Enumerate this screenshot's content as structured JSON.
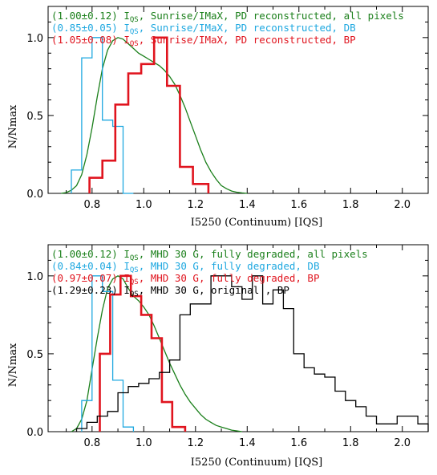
{
  "chart_data": [
    {
      "type": "histogram",
      "xlabel": "I5250 (Continuum) [IQS]",
      "ylabel": "N/Nmax",
      "xlim": [
        0.63,
        2.1
      ],
      "ylim": [
        0,
        1.2
      ],
      "x_ticks": [
        "0.8",
        "1.0",
        "1.2",
        "1.4",
        "1.6",
        "1.8",
        "2.0"
      ],
      "y_ticks": [
        "0.0",
        "0.5",
        "1.0"
      ],
      "legend_placement": "top-left",
      "legend": [
        {
          "value": "(1.00±0.12)",
          "sub": "QS",
          "rest": ", Sunrise/IMaX, PD reconstructed, all pixels",
          "color": "#1a7f1a"
        },
        {
          "value": "(0.85±0.05)",
          "sub": "QS",
          "rest": ", Sunrise/IMaX, PD reconstructed, DB",
          "color": "#1fa8e0"
        },
        {
          "value": "(1.05±0.08)",
          "sub": "QS",
          "rest": ", Sunrise/IMaX, PD reconstructed, BP",
          "color": "#e0141e"
        }
      ],
      "series": [
        {
          "name": "all pixels",
          "style": "curve",
          "color": "#1a7f1a",
          "width": 1.3,
          "x": [
            0.68,
            0.7,
            0.72,
            0.74,
            0.76,
            0.78,
            0.8,
            0.82,
            0.84,
            0.86,
            0.88,
            0.9,
            0.92,
            0.94,
            0.96,
            0.98,
            1.0,
            1.02,
            1.04,
            1.06,
            1.08,
            1.1,
            1.12,
            1.14,
            1.16,
            1.18,
            1.2,
            1.22,
            1.24,
            1.26,
            1.28,
            1.3,
            1.32,
            1.34,
            1.36,
            1.38,
            1.4
          ],
          "y": [
            0,
            0.005,
            0.02,
            0.05,
            0.12,
            0.25,
            0.42,
            0.62,
            0.8,
            0.92,
            0.98,
            1.0,
            0.99,
            0.96,
            0.93,
            0.9,
            0.88,
            0.86,
            0.84,
            0.82,
            0.79,
            0.75,
            0.7,
            0.63,
            0.55,
            0.46,
            0.37,
            0.28,
            0.2,
            0.14,
            0.09,
            0.05,
            0.03,
            0.015,
            0.007,
            0.003,
            0
          ]
        },
        {
          "name": "DB",
          "style": "step",
          "color": "#1fa8e0",
          "width": 1.3,
          "edges": [
            0.72,
            0.76,
            0.8,
            0.84,
            0.88,
            0.92,
            0.96
          ],
          "heights": [
            0.15,
            0.87,
            1.0,
            0.47,
            0.43,
            0.0
          ]
        },
        {
          "name": "BP",
          "style": "step",
          "color": "#e0141e",
          "width": 2.6,
          "edges": [
            0.79,
            0.84,
            0.89,
            0.94,
            0.99,
            1.04,
            1.09,
            1.14,
            1.19,
            1.25
          ],
          "heights": [
            0.1,
            0.21,
            0.57,
            0.77,
            0.83,
            1.0,
            0.69,
            0.17,
            0.06
          ]
        }
      ]
    },
    {
      "type": "histogram",
      "xlabel": "I5250 (Continuum) [IQS]",
      "ylabel": "N/Nmax",
      "xlim": [
        0.63,
        2.1
      ],
      "ylim": [
        0,
        1.2
      ],
      "x_ticks": [
        "0.8",
        "1.0",
        "1.2",
        "1.4",
        "1.6",
        "1.8",
        "2.0"
      ],
      "y_ticks": [
        "0.0",
        "0.5",
        "1.0"
      ],
      "legend_placement": "top-left",
      "legend": [
        {
          "value": "(1.00±0.12)",
          "sub": "QS",
          "rest": ", MHD 30 G, fully degraded, all pixels",
          "color": "#1a7f1a"
        },
        {
          "value": "(0.84±0.04)",
          "sub": "QS",
          "rest": ", MHD 30 G, fully degraded, DB",
          "color": "#1fa8e0"
        },
        {
          "value": "(0.97±0.07)",
          "sub": "QS",
          "rest": ", MHD 30 G, fully degraded, BP",
          "color": "#e0141e"
        },
        {
          "value": "(1.29±0.23)",
          "sub": "QS",
          "rest": ", MHD 30 G, original       , BP",
          "color": "#000000"
        }
      ],
      "series": [
        {
          "name": "all pixels",
          "style": "curve",
          "color": "#1a7f1a",
          "width": 1.3,
          "x": [
            0.72,
            0.74,
            0.76,
            0.78,
            0.8,
            0.82,
            0.84,
            0.86,
            0.88,
            0.9,
            0.92,
            0.94,
            0.96,
            0.98,
            1.0,
            1.02,
            1.04,
            1.06,
            1.08,
            1.1,
            1.12,
            1.14,
            1.16,
            1.18,
            1.2,
            1.22,
            1.24,
            1.26,
            1.28,
            1.3,
            1.32,
            1.34,
            1.36,
            1.38
          ],
          "y": [
            0,
            0.02,
            0.08,
            0.2,
            0.4,
            0.6,
            0.78,
            0.92,
            0.98,
            1.0,
            0.98,
            0.92,
            0.87,
            0.84,
            0.8,
            0.75,
            0.68,
            0.6,
            0.52,
            0.44,
            0.37,
            0.3,
            0.24,
            0.19,
            0.15,
            0.11,
            0.08,
            0.06,
            0.04,
            0.03,
            0.02,
            0.01,
            0.005,
            0
          ]
        },
        {
          "name": "DB",
          "style": "step",
          "color": "#1fa8e0",
          "width": 1.3,
          "edges": [
            0.76,
            0.8,
            0.84,
            0.88,
            0.92,
            0.96
          ],
          "heights": [
            0.2,
            1.0,
            0.9,
            0.33,
            0.03
          ]
        },
        {
          "name": "BP degraded",
          "style": "step",
          "color": "#e0141e",
          "width": 2.6,
          "edges": [
            0.83,
            0.87,
            0.91,
            0.95,
            0.99,
            1.03,
            1.07,
            1.11,
            1.16
          ],
          "heights": [
            0.5,
            0.88,
            1.0,
            0.87,
            0.75,
            0.6,
            0.19,
            0.03
          ]
        },
        {
          "name": "BP original",
          "style": "step",
          "color": "#000000",
          "width": 1.3,
          "edges": [
            0.74,
            0.78,
            0.82,
            0.86,
            0.9,
            0.94,
            0.98,
            1.02,
            1.06,
            1.1,
            1.14,
            1.18,
            1.22,
            1.26,
            1.3,
            1.34,
            1.38,
            1.42,
            1.46,
            1.5,
            1.54,
            1.58,
            1.62,
            1.66,
            1.7,
            1.74,
            1.78,
            1.82,
            1.86,
            1.9,
            1.94,
            1.98,
            2.02,
            2.06,
            2.1
          ],
          "heights": [
            0.02,
            0.06,
            0.1,
            0.13,
            0.25,
            0.29,
            0.31,
            0.34,
            0.38,
            0.46,
            0.75,
            0.82,
            0.82,
            1.0,
            1.0,
            0.93,
            0.85,
            1.0,
            0.82,
            0.91,
            0.79,
            0.5,
            0.41,
            0.37,
            0.35,
            0.26,
            0.2,
            0.16,
            0.1,
            0.05,
            0.05,
            0.1,
            0.1,
            0.05
          ]
        }
      ]
    }
  ]
}
